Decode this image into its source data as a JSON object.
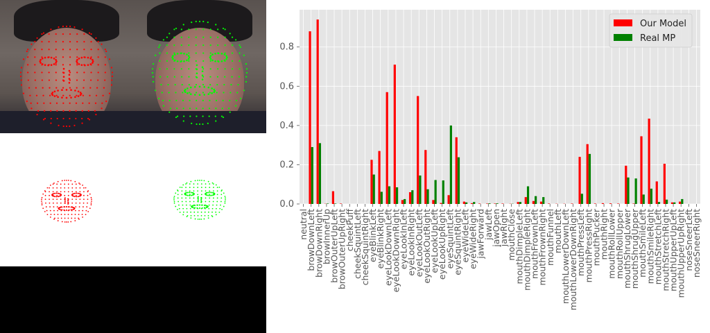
{
  "colors": {
    "our_model": "#ff0000",
    "real_mp": "#008000",
    "plot_bg": "#e5e5e5",
    "grid": "#ffffff"
  },
  "panels": [
    {
      "name": "face-photo-our-model",
      "landmark_color": "#ff0000"
    },
    {
      "name": "face-photo-real-mp",
      "landmark_color": "#00ff00"
    },
    {
      "name": "mesh-our-model",
      "landmark_color": "#ff0000"
    },
    {
      "name": "mesh-real-mp",
      "landmark_color": "#00ff00"
    }
  ],
  "chart_data": {
    "type": "bar",
    "categories": [
      "neutral",
      "browDownLeft",
      "browDownRight",
      "browInnerUp",
      "browOuterUpLeft",
      "browOuterUpRight",
      "cheekPuff",
      "cheekSquintLeft",
      "cheekSquintRight",
      "eyeBlinkLeft",
      "eyeBlinkRight",
      "eyeLookDownLeft",
      "eyeLookDownRight",
      "eyeLookInLeft",
      "eyeLookInRight",
      "eyeLookOutLeft",
      "eyeLookOutRight",
      "eyeLookUpLeft",
      "eyeLookUpRight",
      "eyeSquintLeft",
      "eyeSquintRight",
      "eyeWideLeft",
      "eyeWideRight",
      "jawForward",
      "jawLeft",
      "jawOpen",
      "jawRight",
      "mouthClose",
      "mouthDimpleLeft",
      "mouthDimpleRight",
      "mouthFrownLeft",
      "mouthFrownRight",
      "mouthFunnel",
      "mouthLeft",
      "mouthLowerDownLeft",
      "mouthLowerDownRight",
      "mouthPressLeft",
      "mouthPressRight",
      "mouthPucker",
      "mouthRight",
      "mouthRollLower",
      "mouthRollUpper",
      "mouthShrugLower",
      "mouthShrugUpper",
      "mouthSmileLeft",
      "mouthSmileRight",
      "mouthStretchLeft",
      "mouthStretchRight",
      "mouthUpperUpLeft",
      "mouthUpperUpRight",
      "noseSneerLeft",
      "noseSneerRight"
    ],
    "series": [
      {
        "name": "Our Model",
        "values": [
          0.0,
          0.88,
          0.94,
          0.001,
          0.065,
          0.002,
          0.0,
          0.0,
          0.0,
          0.225,
          0.27,
          0.57,
          0.71,
          0.02,
          0.06,
          0.55,
          0.275,
          0.02,
          0.005,
          0.045,
          0.34,
          0.012,
          0.004,
          0.002,
          0.002,
          0.002,
          0.002,
          0.001,
          0.01,
          0.035,
          0.015,
          0.012,
          0.002,
          0.001,
          0.001,
          0.002,
          0.24,
          0.305,
          0.002,
          0.004,
          0.003,
          0.002,
          0.195,
          0.002,
          0.345,
          0.435,
          0.115,
          0.205,
          0.008,
          0.012,
          0.0,
          0.0
        ]
      },
      {
        "name": "Real MP",
        "values": [
          0.0,
          0.29,
          0.31,
          0.002,
          0.002,
          0.0,
          0.0,
          0.0,
          0.0,
          0.15,
          0.062,
          0.09,
          0.085,
          0.025,
          0.07,
          0.145,
          0.075,
          0.122,
          0.12,
          0.4,
          0.238,
          0.008,
          0.01,
          0.0,
          0.003,
          0.003,
          0.0,
          0.001,
          0.01,
          0.09,
          0.04,
          0.035,
          0.0,
          0.0,
          0.0,
          0.0,
          0.052,
          0.255,
          0.0,
          0.0,
          0.0,
          0.0,
          0.135,
          0.13,
          0.048,
          0.078,
          0.01,
          0.022,
          0.008,
          0.025,
          0.0,
          0.0
        ]
      }
    ],
    "yticks": [
      "0.0",
      "0.2",
      "0.4",
      "0.6",
      "0.8"
    ],
    "ylim": [
      0,
      0.99
    ],
    "grid": true,
    "legend_position": "top-right"
  }
}
